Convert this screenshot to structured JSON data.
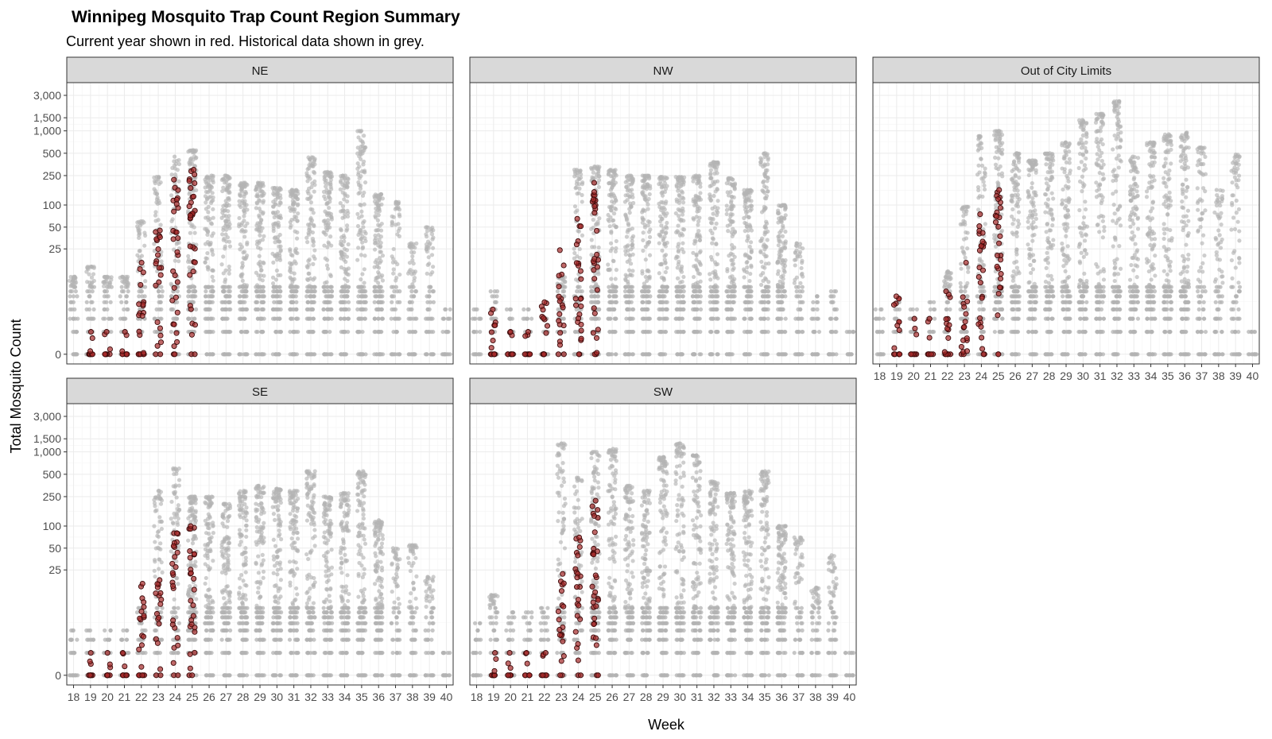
{
  "chart_data": {
    "type": "scatter",
    "title": "Winnipeg Mosquito Trap Count Region Summary",
    "subtitle": "Current year shown in red. Historical data shown in grey.",
    "xlabel": "Week",
    "ylabel": "Total Mosquito Count",
    "y_scale": "pseudo-log",
    "y_ticks": [
      0,
      25,
      50,
      100,
      250,
      500,
      1000,
      1500,
      3000
    ],
    "y_tick_labels": [
      "0",
      "25",
      "50",
      "100",
      "250",
      "500",
      "1,000",
      "1,500",
      "3,000"
    ],
    "x_ticks": [
      18,
      19,
      20,
      21,
      22,
      23,
      24,
      25,
      26,
      27,
      28,
      29,
      30,
      31,
      32,
      33,
      34,
      35,
      36,
      37,
      38,
      39,
      40
    ],
    "x_range": [
      17.6,
      40.4
    ],
    "y_range": [
      -0.3,
      8.4
    ],
    "grid": true,
    "colors": {
      "historical": "#b3b3b3",
      "current_fill": "#a52a2a",
      "current_stroke": "#3c0a0a",
      "strip_fill": "#d9d9d9",
      "panel_border": "#333333",
      "grid": "#ebebeb"
    },
    "series": [
      {
        "name": "Current year",
        "color": "#a52a2a"
      },
      {
        "name": "Historical",
        "color": "#b3b3b3"
      }
    ],
    "panels": [
      {
        "name": "NE",
        "historical_max": [
          10,
          14,
          10,
          10,
          60,
          240,
          450,
          550,
          250,
          250,
          200,
          200,
          170,
          160,
          440,
          280,
          250,
          1000,
          140,
          110,
          30,
          50,
          3
        ],
        "current_weeks": [
          19,
          20,
          21,
          22,
          23,
          24,
          25
        ],
        "current_max": [
          1,
          1,
          1,
          16,
          45,
          220,
          300
        ]
      },
      {
        "name": "NW",
        "historical_max": [
          3,
          6,
          3,
          3,
          2,
          10,
          300,
          330,
          300,
          250,
          250,
          240,
          240,
          250,
          380,
          230,
          160,
          500,
          100,
          30,
          5,
          6,
          1
        ],
        "current_weeks": [
          19,
          20,
          21,
          22,
          23,
          24,
          25
        ],
        "current_max": [
          3,
          1,
          1,
          4,
          24,
          65,
          200
        ]
      },
      {
        "name": "Out of City Limits",
        "historical_max": [
          3,
          4,
          3,
          4,
          12,
          95,
          850,
          1000,
          500,
          400,
          500,
          700,
          1400,
          1700,
          2500,
          450,
          700,
          900,
          950,
          600,
          160,
          480,
          1
        ],
        "current_weeks": [
          19,
          20,
          21,
          22,
          23,
          24,
          25
        ],
        "current_max": [
          5,
          2,
          2,
          6,
          16,
          75,
          160
        ]
      },
      {
        "name": "SE",
        "historical_max": [
          3,
          3,
          3,
          3,
          8,
          300,
          600,
          250,
          250,
          200,
          300,
          350,
          320,
          300,
          550,
          250,
          280,
          550,
          120,
          50,
          55,
          20,
          1
        ],
        "current_weeks": [
          19,
          20,
          21,
          22,
          23,
          24,
          25
        ],
        "current_max": [
          1,
          1,
          1,
          16,
          18,
          80,
          100
        ]
      },
      {
        "name": "SW",
        "historical_max": [
          4,
          11,
          6,
          6,
          8,
          1300,
          450,
          1000,
          1100,
          350,
          300,
          850,
          1300,
          900,
          400,
          280,
          300,
          550,
          100,
          70,
          14,
          40,
          1
        ],
        "current_weeks": [
          19,
          20,
          21,
          22,
          23,
          24,
          25
        ],
        "current_max": [
          1,
          1,
          1,
          1,
          22,
          70,
          220
        ]
      }
    ]
  }
}
